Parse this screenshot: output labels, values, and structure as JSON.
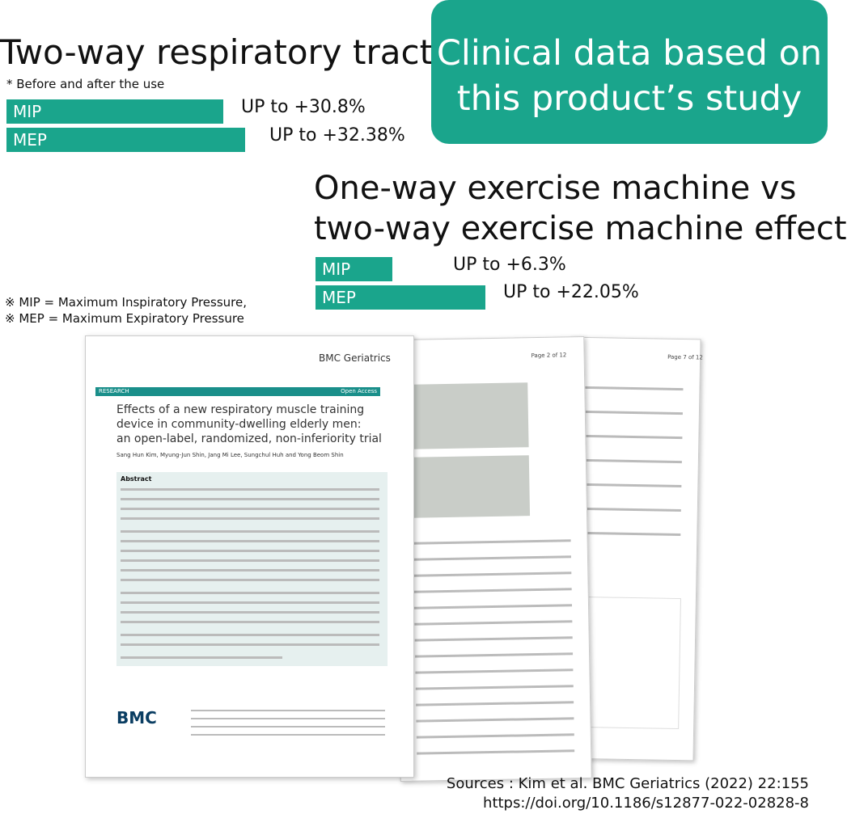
{
  "two_way": {
    "title": "Two-way respiratory tract",
    "note": "*  Before and after the use",
    "rows": [
      {
        "label": "MIP",
        "result": "UP to +30.8%"
      },
      {
        "label": "MEP",
        "result": "UP to +32.38%"
      }
    ]
  },
  "badge": [
    "Clinical data based on",
    "this product’s study"
  ],
  "one_vs_two": {
    "title": [
      "One-way exercise machine vs",
      "two-way exercise machine effect"
    ],
    "rows": [
      {
        "label": "MIP",
        "result": "UP to +6.3%"
      },
      {
        "label": "MEP",
        "result": "UP to +22.05%"
      }
    ]
  },
  "definitions": [
    "※ MIP = Maximum Inspiratory Pressure,",
    "※ MEP = Maximum Expiratory Pressure"
  ],
  "papers": {
    "journal": "BMC Geriatrics",
    "section": "RESEARCH",
    "access": "Open Access",
    "title": [
      "Effects of a new respiratory muscle training",
      "device in community-dwelling elderly men:",
      "an open-label, randomized, non-inferiority trial"
    ],
    "authors": "Sang Hun Kim, Myung-Jun Shin, Jang Mi Lee, Sungchul Huh and Yong Beom Shin",
    "abstract": "Abstract",
    "logo": "BMC",
    "page2": "Page 2 of 12",
    "page3": "Page 7 of 12"
  },
  "sources": [
    "Sources : Kim et al. BMC Geriatrics  (2022) 22:155",
    "https://doi.org/10.1186/s12877-022-02828-8"
  ]
}
